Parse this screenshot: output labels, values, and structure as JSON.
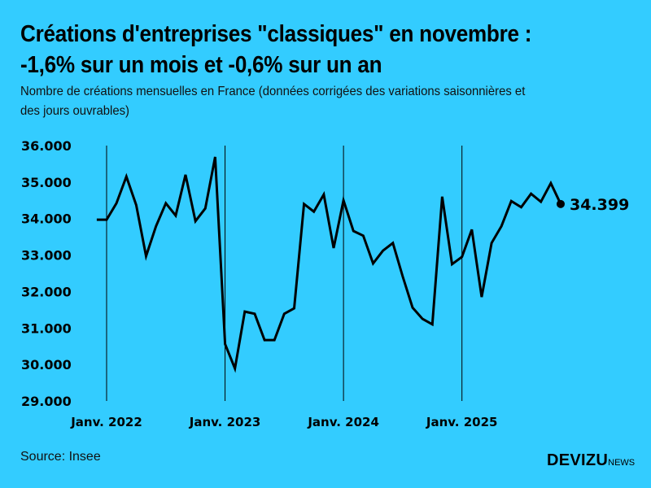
{
  "header": {
    "title_line1": "Créations d'entreprises \"classiques\" en novembre :",
    "title_line2": "-1,6% sur un mois et -0,6% sur un an",
    "subtitle_line1": "Nombre de créations mensuelles en France (données corrigées des variations saisonnières et",
    "subtitle_line2": "des jours ouvrables)"
  },
  "footer": {
    "source": "Source: Insee",
    "logo": "DEVIZU",
    "logo_suffix": "NEWS"
  },
  "colors": {
    "background": "#33ccff",
    "line": "#000000"
  },
  "chart_data": {
    "type": "line",
    "title": "",
    "xlabel": "",
    "ylabel": "",
    "ylim": [
      29000,
      36000
    ],
    "yticks": [
      36000,
      35000,
      34000,
      33000,
      32000,
      31000,
      30000,
      29000
    ],
    "ytick_labels": [
      "36.000",
      "35.000",
      "34.000",
      "33.000",
      "32.000",
      "31.000",
      "30.000",
      "29.000"
    ],
    "xtick_labels": [
      "Janv. 2022",
      "Janv. 2023",
      "Janv. 2024",
      "Janv. 2025"
    ],
    "xticks": [
      "2022-01",
      "2023-01",
      "2024-01",
      "2025-01"
    ],
    "grid": "vertical lines at January of each year",
    "last_point_label": "34.399",
    "x": [
      "2021-12",
      "2022-01",
      "2022-02",
      "2022-03",
      "2022-04",
      "2022-05",
      "2022-06",
      "2022-07",
      "2022-08",
      "2022-09",
      "2022-10",
      "2022-11",
      "2022-12",
      "2023-01",
      "2023-02",
      "2023-03",
      "2023-04",
      "2023-05",
      "2023-06",
      "2023-07",
      "2023-08",
      "2023-09",
      "2023-10",
      "2023-11",
      "2023-12",
      "2024-01",
      "2024-02",
      "2024-03",
      "2024-04",
      "2024-05",
      "2024-06",
      "2024-07",
      "2024-08",
      "2024-09",
      "2024-10",
      "2024-11",
      "2024-12",
      "2025-01",
      "2025-02",
      "2025-03",
      "2025-04",
      "2025-05",
      "2025-06",
      "2025-07",
      "2025-08",
      "2025-09",
      "2025-10",
      "2025-11"
    ],
    "values": [
      33970,
      33970,
      34420,
      35150,
      34370,
      32970,
      33790,
      34420,
      34080,
      35200,
      33930,
      34280,
      35690,
      30560,
      29890,
      31450,
      31390,
      30670,
      30670,
      31390,
      31540,
      34400,
      34190,
      34660,
      33190,
      34500,
      33660,
      33530,
      32770,
      33120,
      33330,
      32410,
      31560,
      31250,
      31100,
      34600,
      32750,
      32950,
      33700,
      31850,
      33330,
      33790,
      34480,
      34310,
      34680,
      34460,
      34970,
      34399
    ]
  }
}
